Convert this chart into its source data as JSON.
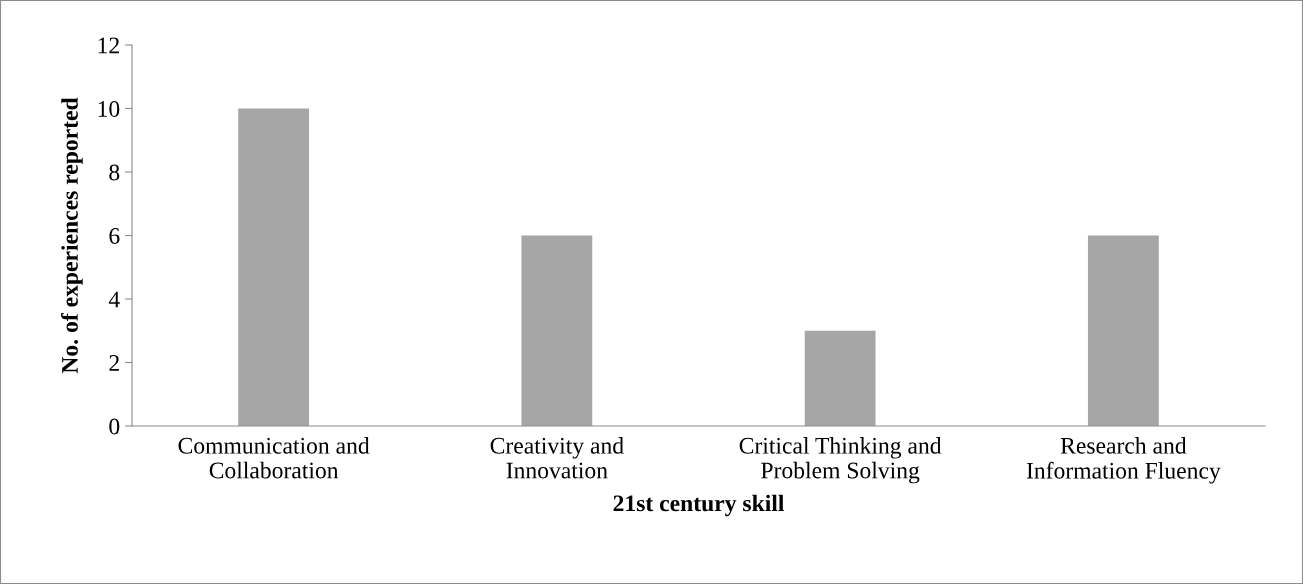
{
  "chart_data": {
    "type": "bar",
    "xlabel": "21st century skill",
    "ylabel": "No. of experiences reported",
    "categories": [
      "Communication and\nCollaboration",
      "Creativity and\nInnovation",
      "Critical Thinking and\nProblem Solving",
      "Research and\nInformation Fluency"
    ],
    "values": [
      10,
      6,
      3,
      6
    ],
    "color": "#a6a6a6",
    "ylim": [
      0,
      12
    ],
    "yticks": [
      0,
      2,
      4,
      6,
      8,
      10,
      12
    ],
    "grid": false,
    "legend": false
  }
}
